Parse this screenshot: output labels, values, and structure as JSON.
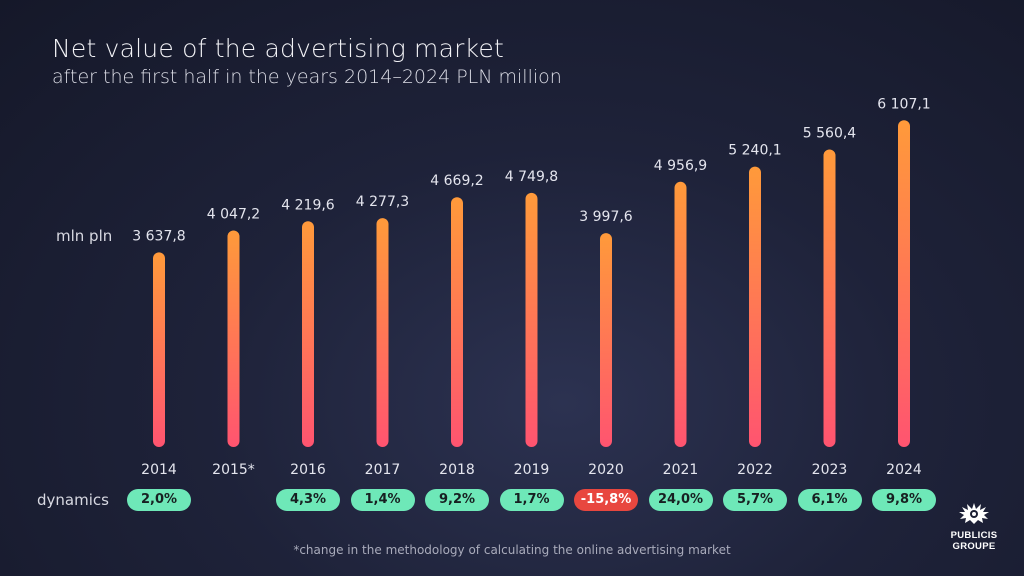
{
  "title": "Net value of the advertising market",
  "subtitle": "after the first half in the years 2014–2024 PLN million",
  "unit_label": "mln pln",
  "dynamics_label": "dynamics",
  "footnote": "*change in the methodology of calculating the online advertising market",
  "logo": {
    "line1": "PUBLICIS",
    "line2": "GROUPE"
  },
  "colors": {
    "bar_top": "#ff9a3a",
    "bar_bottom": "#ff5470",
    "pill_positive": "#6ee8b8",
    "pill_negative": "#e8473f"
  },
  "chart_data": {
    "type": "bar",
    "categories": [
      "2014",
      "2015*",
      "2016",
      "2017",
      "2018",
      "2019",
      "2020",
      "2021",
      "2022",
      "2023",
      "2024"
    ],
    "values": [
      3637.8,
      4047.2,
      4219.6,
      4277.3,
      4669.2,
      4749.8,
      3997.6,
      4956.9,
      5240.1,
      5560.4,
      6107.1
    ],
    "value_labels": [
      "3 637,8",
      "4 047,2",
      "4 219,6",
      "4 277,3",
      "4 669,2",
      "4 749,8",
      "3 997,6",
      "4 956,9",
      "5 240,1",
      "5 560,4",
      "6 107,1"
    ],
    "dynamics": [
      "2,0%",
      "",
      "4,3%",
      "1,4%",
      "9,2%",
      "1,7%",
      "-15,8%",
      "24,0%",
      "5,7%",
      "6,1%",
      "9,8%"
    ],
    "dynamics_negative": [
      false,
      false,
      false,
      false,
      false,
      false,
      true,
      false,
      false,
      false,
      false
    ]
  }
}
